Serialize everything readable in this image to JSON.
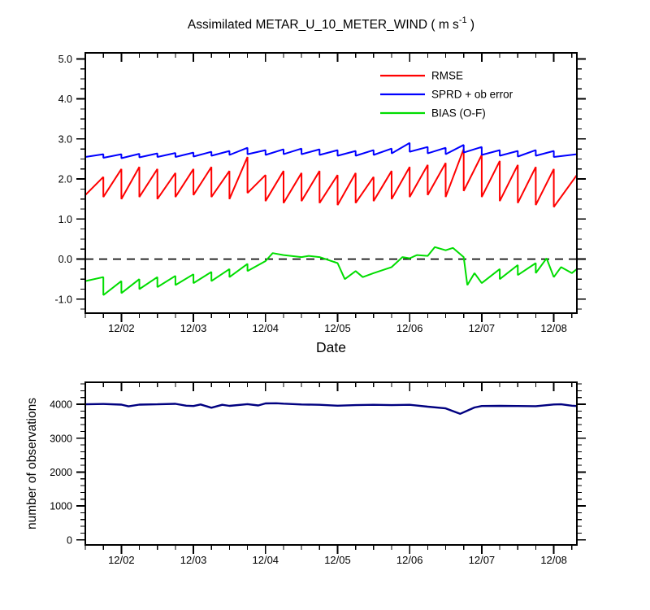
{
  "chart_data": [
    {
      "name": "error-statistics-panel",
      "type": "line",
      "title_parts": {
        "main": "Assimilated METAR_U_10_METER_WIND ( m s",
        "sup": "-1",
        "tail": " )"
      },
      "xlabel": "Date",
      "xlim": [
        1.5,
        8.32
      ],
      "ylim": [
        -1.35,
        5.15
      ],
      "xticks": [
        2,
        3,
        4,
        5,
        6,
        7,
        8
      ],
      "xtick_labels": [
        "12/02",
        "12/03",
        "12/04",
        "12/05",
        "12/06",
        "12/07",
        "12/08"
      ],
      "yticks": [
        -1,
        0,
        1,
        2,
        3,
        4,
        5
      ],
      "ytick_labels": [
        "-1.0",
        "0.0",
        "1.0",
        "2.0",
        "3.0",
        "4.0",
        "5.0"
      ],
      "minor_x_step": 0.25,
      "minor_y_step": 0.25,
      "zero_line": {
        "value": 0,
        "style": "dashed",
        "color": "#000000"
      },
      "legend": [
        {
          "label": "RMSE",
          "color": "#ff0000"
        },
        {
          "label": "SPRD + ob error",
          "color": "#0000ff"
        },
        {
          "label": "BIAS (O-F)",
          "color": "#00dd00"
        }
      ],
      "series": [
        {
          "name": "RMSE",
          "color": "#ff0000",
          "width": 2,
          "points": [
            [
              1.5,
              1.6
            ],
            [
              1.75,
              2.05
            ],
            [
              1.75,
              1.55
            ],
            [
              2,
              2.25
            ],
            [
              2,
              1.5
            ],
            [
              2.25,
              2.3
            ],
            [
              2.25,
              1.55
            ],
            [
              2.5,
              2.25
            ],
            [
              2.5,
              1.5
            ],
            [
              2.75,
              2.15
            ],
            [
              2.75,
              1.55
            ],
            [
              3,
              2.25
            ],
            [
              3,
              1.6
            ],
            [
              3.25,
              2.3
            ],
            [
              3.25,
              1.55
            ],
            [
              3.5,
              2.2
            ],
            [
              3.5,
              1.5
            ],
            [
              3.75,
              2.55
            ],
            [
              3.75,
              1.65
            ],
            [
              4,
              2.1
            ],
            [
              4,
              1.45
            ],
            [
              4.25,
              2.2
            ],
            [
              4.25,
              1.4
            ],
            [
              4.5,
              2.15
            ],
            [
              4.5,
              1.45
            ],
            [
              4.75,
              2.2
            ],
            [
              4.75,
              1.4
            ],
            [
              5,
              2.1
            ],
            [
              5,
              1.35
            ],
            [
              5.25,
              2.15
            ],
            [
              5.25,
              1.4
            ],
            [
              5.5,
              2.05
            ],
            [
              5.5,
              1.45
            ],
            [
              5.75,
              2.2
            ],
            [
              5.75,
              1.5
            ],
            [
              6,
              2.3
            ],
            [
              6,
              1.55
            ],
            [
              6.25,
              2.35
            ],
            [
              6.25,
              1.6
            ],
            [
              6.5,
              2.4
            ],
            [
              6.5,
              1.55
            ],
            [
              6.75,
              2.75
            ],
            [
              6.75,
              1.7
            ],
            [
              7,
              2.6
            ],
            [
              7,
              1.55
            ],
            [
              7.25,
              2.45
            ],
            [
              7.25,
              1.45
            ],
            [
              7.5,
              2.35
            ],
            [
              7.5,
              1.4
            ],
            [
              7.75,
              2.3
            ],
            [
              7.75,
              1.35
            ],
            [
              8,
              2.25
            ],
            [
              8,
              1.3
            ],
            [
              8.32,
              2.1
            ]
          ]
        },
        {
          "name": "SPRD + ob error",
          "color": "#0000ff",
          "width": 2,
          "points": [
            [
              1.5,
              2.55
            ],
            [
              1.75,
              2.62
            ],
            [
              1.75,
              2.53
            ],
            [
              2,
              2.62
            ],
            [
              2,
              2.52
            ],
            [
              2.25,
              2.63
            ],
            [
              2.25,
              2.54
            ],
            [
              2.5,
              2.64
            ],
            [
              2.5,
              2.55
            ],
            [
              2.75,
              2.65
            ],
            [
              2.75,
              2.55
            ],
            [
              3,
              2.66
            ],
            [
              3,
              2.56
            ],
            [
              3.25,
              2.68
            ],
            [
              3.25,
              2.58
            ],
            [
              3.5,
              2.7
            ],
            [
              3.5,
              2.6
            ],
            [
              3.75,
              2.78
            ],
            [
              3.75,
              2.62
            ],
            [
              4,
              2.72
            ],
            [
              4,
              2.6
            ],
            [
              4.25,
              2.74
            ],
            [
              4.25,
              2.62
            ],
            [
              4.5,
              2.76
            ],
            [
              4.5,
              2.62
            ],
            [
              4.75,
              2.74
            ],
            [
              4.75,
              2.6
            ],
            [
              5,
              2.72
            ],
            [
              5,
              2.58
            ],
            [
              5.25,
              2.7
            ],
            [
              5.25,
              2.58
            ],
            [
              5.5,
              2.72
            ],
            [
              5.5,
              2.6
            ],
            [
              5.75,
              2.76
            ],
            [
              5.75,
              2.64
            ],
            [
              6,
              2.9
            ],
            [
              6,
              2.68
            ],
            [
              6.25,
              2.8
            ],
            [
              6.25,
              2.64
            ],
            [
              6.5,
              2.78
            ],
            [
              6.5,
              2.62
            ],
            [
              6.75,
              2.85
            ],
            [
              6.75,
              2.66
            ],
            [
              7,
              2.8
            ],
            [
              7,
              2.6
            ],
            [
              7.25,
              2.72
            ],
            [
              7.25,
              2.58
            ],
            [
              7.5,
              2.7
            ],
            [
              7.5,
              2.56
            ],
            [
              7.75,
              2.72
            ],
            [
              7.75,
              2.58
            ],
            [
              8,
              2.7
            ],
            [
              8,
              2.55
            ],
            [
              8.32,
              2.62
            ]
          ]
        },
        {
          "name": "BIAS (O-F)",
          "color": "#00dd00",
          "width": 2,
          "points": [
            [
              1.5,
              -0.55
            ],
            [
              1.75,
              -0.45
            ],
            [
              1.75,
              -0.9
            ],
            [
              2,
              -0.55
            ],
            [
              2,
              -0.85
            ],
            [
              2.25,
              -0.5
            ],
            [
              2.25,
              -0.75
            ],
            [
              2.5,
              -0.45
            ],
            [
              2.5,
              -0.7
            ],
            [
              2.75,
              -0.42
            ],
            [
              2.75,
              -0.65
            ],
            [
              3,
              -0.38
            ],
            [
              3,
              -0.6
            ],
            [
              3.25,
              -0.32
            ],
            [
              3.25,
              -0.55
            ],
            [
              3.5,
              -0.25
            ],
            [
              3.5,
              -0.45
            ],
            [
              3.75,
              -0.12
            ],
            [
              3.75,
              -0.3
            ],
            [
              4,
              -0.05
            ],
            [
              4.1,
              0.15
            ],
            [
              4.25,
              0.1
            ],
            [
              4.5,
              0.05
            ],
            [
              4.6,
              0.08
            ],
            [
              4.75,
              0.05
            ],
            [
              5,
              -0.1
            ],
            [
              5.1,
              -0.5
            ],
            [
              5.25,
              -0.3
            ],
            [
              5.35,
              -0.45
            ],
            [
              5.5,
              -0.35
            ],
            [
              5.75,
              -0.2
            ],
            [
              5.9,
              0.05
            ],
            [
              6,
              0.02
            ],
            [
              6.1,
              0.1
            ],
            [
              6.25,
              0.08
            ],
            [
              6.35,
              0.3
            ],
            [
              6.5,
              0.22
            ],
            [
              6.6,
              0.28
            ],
            [
              6.75,
              0.05
            ],
            [
              6.8,
              -0.65
            ],
            [
              6.9,
              -0.35
            ],
            [
              7,
              -0.6
            ],
            [
              7.25,
              -0.25
            ],
            [
              7.25,
              -0.5
            ],
            [
              7.5,
              -0.15
            ],
            [
              7.5,
              -0.4
            ],
            [
              7.75,
              -0.1
            ],
            [
              7.75,
              -0.35
            ],
            [
              7.9,
              0.02
            ],
            [
              8,
              -0.45
            ],
            [
              8.1,
              -0.2
            ],
            [
              8.25,
              -0.35
            ],
            [
              8.32,
              -0.25
            ]
          ]
        }
      ]
    },
    {
      "name": "observation-count-panel",
      "type": "line",
      "ylabel": "number of observations",
      "xlim": [
        1.5,
        8.32
      ],
      "ylim": [
        -150,
        4650
      ],
      "xticks": [
        2,
        3,
        4,
        5,
        6,
        7,
        8
      ],
      "xtick_labels": [
        "12/02",
        "12/03",
        "12/04",
        "12/05",
        "12/06",
        "12/07",
        "12/08"
      ],
      "yticks": [
        0,
        1000,
        2000,
        3000,
        4000
      ],
      "ytick_labels": [
        "0",
        "1000",
        "2000",
        "3000",
        "4000"
      ],
      "minor_x_step": 0.25,
      "minor_y_step": 200,
      "series": [
        {
          "name": "number of observations",
          "color": "#000080",
          "width": 2.4,
          "points": [
            [
              1.5,
              4000
            ],
            [
              1.75,
              4010
            ],
            [
              2,
              3990
            ],
            [
              2.1,
              3940
            ],
            [
              2.25,
              3990
            ],
            [
              2.5,
              4000
            ],
            [
              2.75,
              4015
            ],
            [
              2.9,
              3960
            ],
            [
              3,
              3950
            ],
            [
              3.1,
              3995
            ],
            [
              3.25,
              3900
            ],
            [
              3.4,
              3985
            ],
            [
              3.5,
              3955
            ],
            [
              3.75,
              4005
            ],
            [
              3.9,
              3965
            ],
            [
              4,
              4025
            ],
            [
              4.15,
              4030
            ],
            [
              4.25,
              4020
            ],
            [
              4.5,
              3995
            ],
            [
              4.75,
              3985
            ],
            [
              5,
              3960
            ],
            [
              5.25,
              3975
            ],
            [
              5.5,
              3985
            ],
            [
              5.75,
              3975
            ],
            [
              6,
              3985
            ],
            [
              6.25,
              3930
            ],
            [
              6.5,
              3880
            ],
            [
              6.7,
              3720
            ],
            [
              6.9,
              3905
            ],
            [
              7,
              3950
            ],
            [
              7.25,
              3955
            ],
            [
              7.5,
              3950
            ],
            [
              7.75,
              3945
            ],
            [
              8,
              3995
            ],
            [
              8.1,
              4000
            ],
            [
              8.25,
              3960
            ],
            [
              8.32,
              3950
            ]
          ]
        }
      ]
    }
  ]
}
